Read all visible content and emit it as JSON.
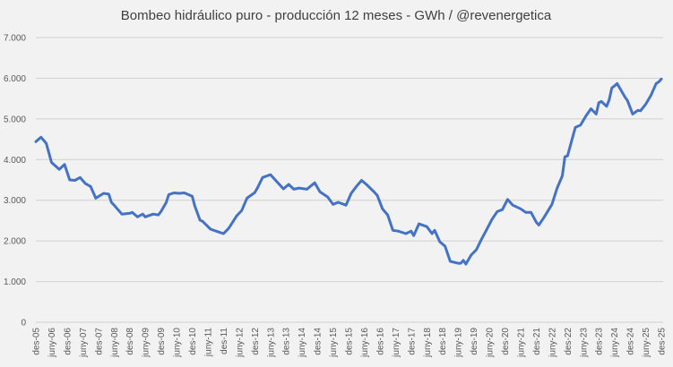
{
  "chart_data": {
    "type": "line",
    "title": "Bombeo hidráulico puro - producción 12 meses - GWh / @revenergetica",
    "xlabel": "",
    "ylabel": "",
    "ylim": [
      0,
      7000
    ],
    "xlim": [
      "2005-12",
      "2025-12"
    ],
    "grid": true,
    "legend": "none",
    "line_color": "#4472c4",
    "background": "#f2f2f2",
    "y_tick_labels": [
      "0",
      "1.000",
      "2.000",
      "3.000",
      "4.000",
      "5.000",
      "6.000",
      "7.000"
    ],
    "y_tick_values": [
      0,
      1000,
      2000,
      3000,
      4000,
      5000,
      6000,
      7000
    ],
    "x_tick_labels": [
      "des-05",
      "juny-06",
      "des-06",
      "juny-07",
      "des-07",
      "juny-08",
      "des-08",
      "juny-09",
      "des-09",
      "juny-10",
      "des-10",
      "juny-11",
      "des-11",
      "juny-12",
      "des-12",
      "juny-13",
      "des-13",
      "juny-14",
      "des-14",
      "juny-15",
      "des-15",
      "juny-16",
      "des-16",
      "juny-17",
      "des-17",
      "juny-18",
      "des-18",
      "juny-19",
      "des-19",
      "juny-20",
      "des-20",
      "juny-21",
      "des-21",
      "juny-22",
      "des-22",
      "juny-23",
      "des-23",
      "juny-24",
      "des-24",
      "juny-25",
      "des-25"
    ],
    "series": [
      {
        "points": [
          [
            "2005-12",
            4440
          ],
          [
            "2006-02",
            4550
          ],
          [
            "2006-04",
            4400
          ],
          [
            "2006-06",
            3930
          ],
          [
            "2006-09",
            3760
          ],
          [
            "2006-11",
            3880
          ],
          [
            "2007-01",
            3500
          ],
          [
            "2007-03",
            3490
          ],
          [
            "2007-05",
            3560
          ],
          [
            "2007-07",
            3410
          ],
          [
            "2007-09",
            3340
          ],
          [
            "2007-11",
            3050
          ],
          [
            "2008-02",
            3170
          ],
          [
            "2008-04",
            3150
          ],
          [
            "2008-05",
            2950
          ],
          [
            "2008-06",
            2880
          ],
          [
            "2008-09",
            2660
          ],
          [
            "2008-12",
            2680
          ],
          [
            "2009-01",
            2700
          ],
          [
            "2009-03",
            2590
          ],
          [
            "2009-05",
            2660
          ],
          [
            "2009-06",
            2590
          ],
          [
            "2009-09",
            2660
          ],
          [
            "2009-11",
            2640
          ],
          [
            "2009-12",
            2720
          ],
          [
            "2010-02",
            2940
          ],
          [
            "2010-03",
            3140
          ],
          [
            "2010-05",
            3180
          ],
          [
            "2010-07",
            3170
          ],
          [
            "2010-09",
            3180
          ],
          [
            "2010-12",
            3100
          ],
          [
            "2011-01",
            2860
          ],
          [
            "2011-03",
            2510
          ],
          [
            "2011-04",
            2480
          ],
          [
            "2011-07",
            2290
          ],
          [
            "2011-10",
            2220
          ],
          [
            "2011-12",
            2180
          ],
          [
            "2012-02",
            2310
          ],
          [
            "2012-05",
            2610
          ],
          [
            "2012-07",
            2750
          ],
          [
            "2012-09",
            3050
          ],
          [
            "2012-12",
            3190
          ],
          [
            "2013-01",
            3300
          ],
          [
            "2013-03",
            3560
          ],
          [
            "2013-06",
            3630
          ],
          [
            "2013-08",
            3490
          ],
          [
            "2013-11",
            3280
          ],
          [
            "2014-01",
            3390
          ],
          [
            "2014-03",
            3270
          ],
          [
            "2014-05",
            3300
          ],
          [
            "2014-08",
            3270
          ],
          [
            "2014-11",
            3430
          ],
          [
            "2015-01",
            3210
          ],
          [
            "2015-04",
            3080
          ],
          [
            "2015-06",
            2900
          ],
          [
            "2015-08",
            2950
          ],
          [
            "2015-11",
            2880
          ],
          [
            "2016-01",
            3170
          ],
          [
            "2016-03",
            3340
          ],
          [
            "2016-05",
            3490
          ],
          [
            "2016-07",
            3380
          ],
          [
            "2016-10",
            3190
          ],
          [
            "2016-11",
            3120
          ],
          [
            "2017-01",
            2790
          ],
          [
            "2017-03",
            2640
          ],
          [
            "2017-05",
            2260
          ],
          [
            "2017-07",
            2240
          ],
          [
            "2017-10",
            2180
          ],
          [
            "2017-12",
            2240
          ],
          [
            "2018-01",
            2130
          ],
          [
            "2018-03",
            2420
          ],
          [
            "2018-06",
            2350
          ],
          [
            "2018-08",
            2180
          ],
          [
            "2018-09",
            2260
          ],
          [
            "2018-11",
            1980
          ],
          [
            "2019-01",
            1870
          ],
          [
            "2019-03",
            1500
          ],
          [
            "2019-06",
            1450
          ],
          [
            "2019-07",
            1450
          ],
          [
            "2019-08",
            1520
          ],
          [
            "2019-09",
            1430
          ],
          [
            "2019-11",
            1650
          ],
          [
            "2020-01",
            1780
          ],
          [
            "2020-03",
            2040
          ],
          [
            "2020-05",
            2280
          ],
          [
            "2020-07",
            2530
          ],
          [
            "2020-09",
            2720
          ],
          [
            "2020-11",
            2770
          ],
          [
            "2021-01",
            3020
          ],
          [
            "2021-03",
            2880
          ],
          [
            "2021-06",
            2790
          ],
          [
            "2021-08",
            2700
          ],
          [
            "2021-10",
            2700
          ],
          [
            "2021-12",
            2460
          ],
          [
            "2022-01",
            2390
          ],
          [
            "2022-03",
            2580
          ],
          [
            "2022-06",
            2900
          ],
          [
            "2022-08",
            3300
          ],
          [
            "2022-10",
            3600
          ],
          [
            "2022-11",
            4070
          ],
          [
            "2022-12",
            4090
          ],
          [
            "2023-03",
            4790
          ],
          [
            "2023-05",
            4850
          ],
          [
            "2023-07",
            5070
          ],
          [
            "2023-09",
            5250
          ],
          [
            "2023-11",
            5120
          ],
          [
            "2023-12",
            5400
          ],
          [
            "2024-01",
            5430
          ],
          [
            "2024-03",
            5310
          ],
          [
            "2024-04",
            5470
          ],
          [
            "2024-05",
            5760
          ],
          [
            "2024-06",
            5810
          ],
          [
            "2024-07",
            5870
          ],
          [
            "2024-10",
            5540
          ],
          [
            "2024-11",
            5450
          ],
          [
            "2025-01",
            5120
          ],
          [
            "2025-03",
            5210
          ],
          [
            "2025-04",
            5200
          ],
          [
            "2025-06",
            5360
          ],
          [
            "2025-08",
            5580
          ],
          [
            "2025-10",
            5870
          ],
          [
            "2025-11",
            5910
          ],
          [
            "2025-12",
            5980
          ]
        ]
      }
    ]
  }
}
